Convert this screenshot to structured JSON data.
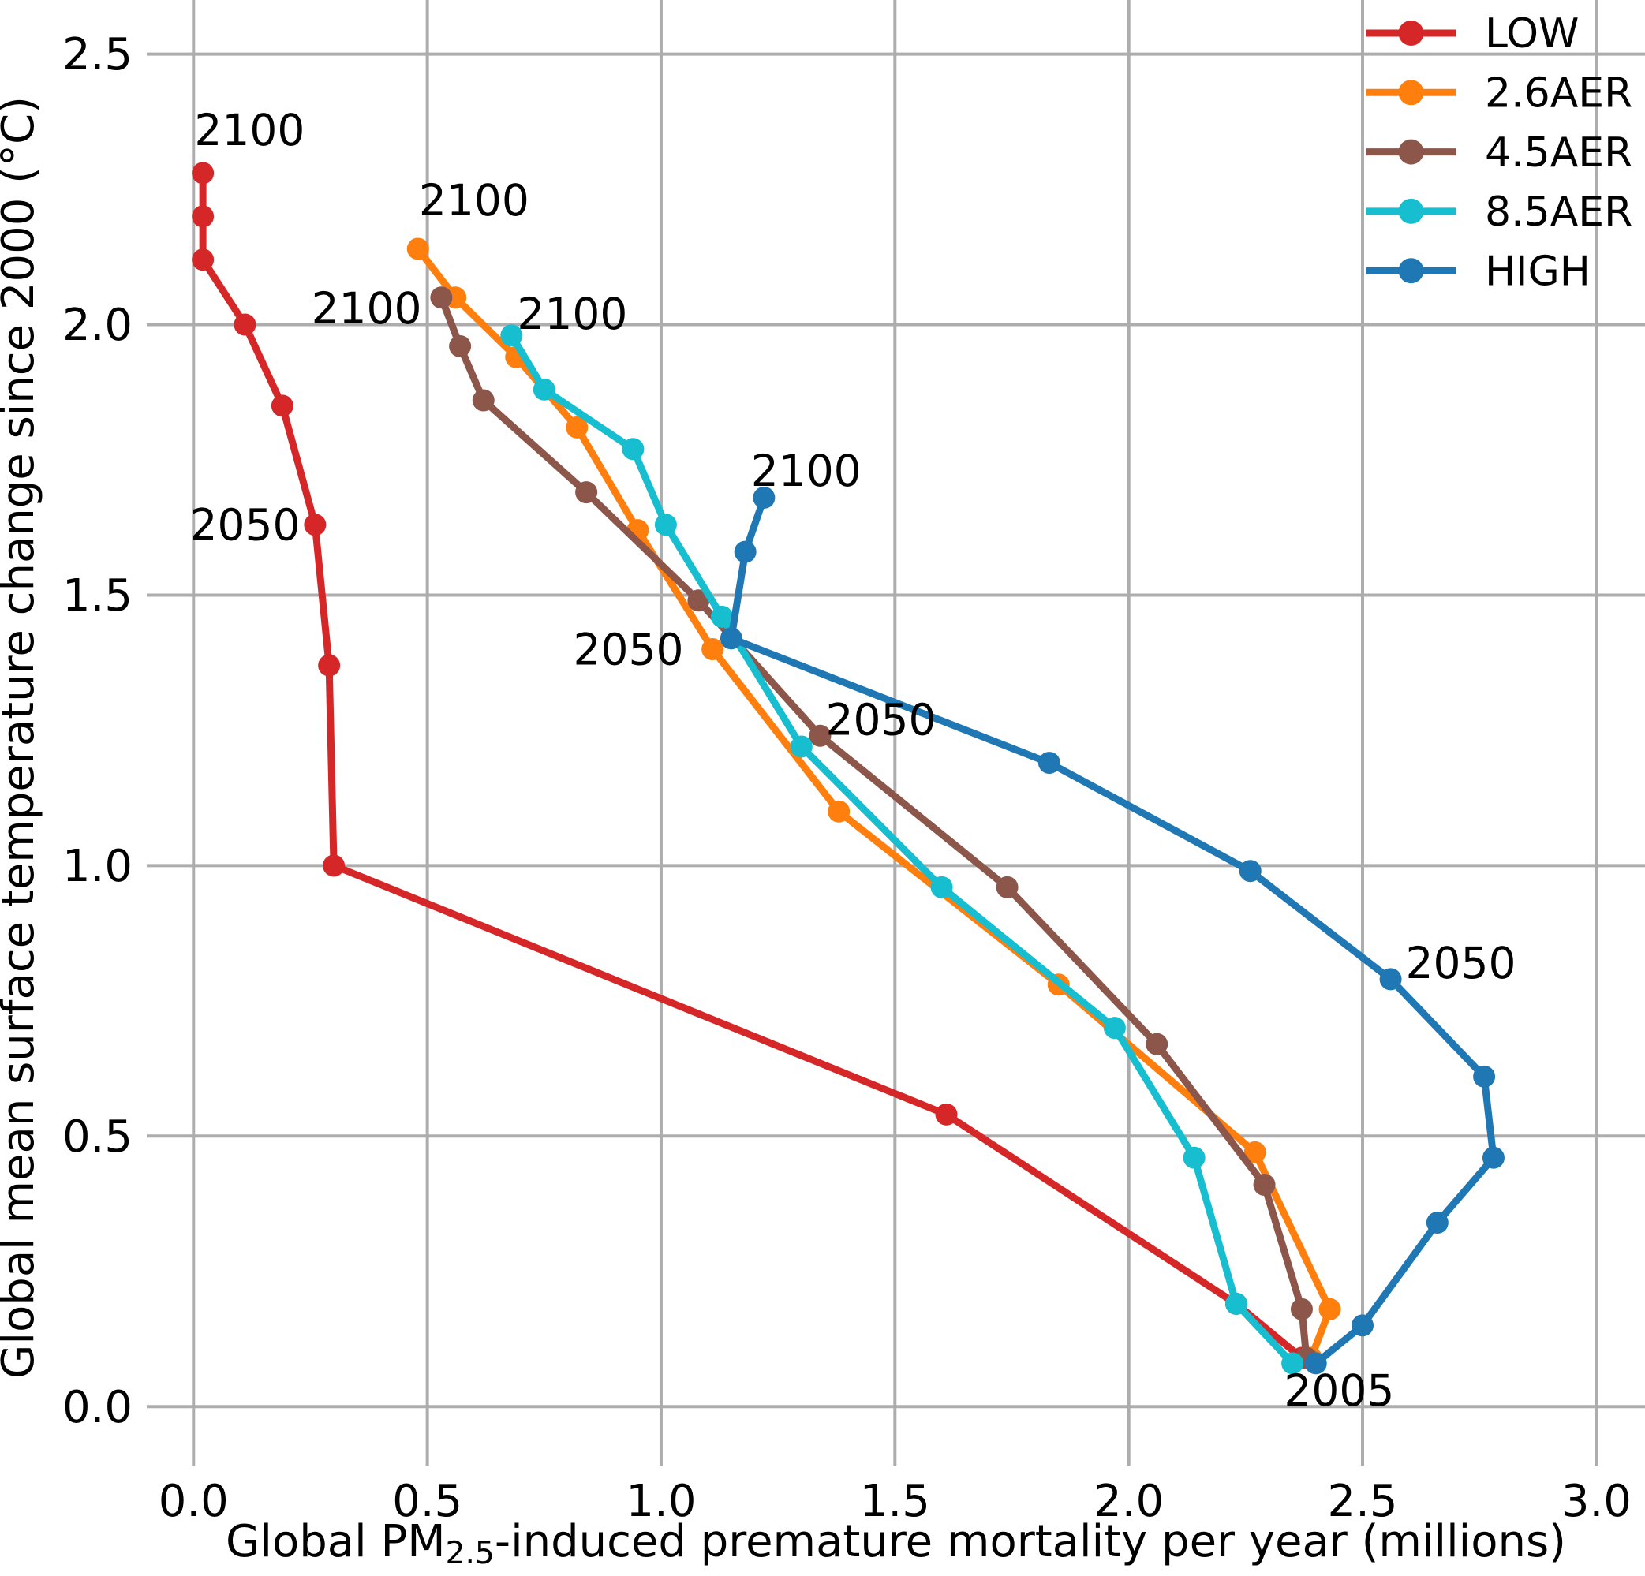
{
  "chart_data": {
    "type": "line",
    "title": "",
    "xlabel": {
      "prefix": "Global PM",
      "sub": "2.5",
      "suffix": "-induced premature mortality per year (millions)"
    },
    "ylabel": "Global mean surface temperature change since 2000 (°C)",
    "xlim": [
      -0.1,
      3.104
    ],
    "ylim": [
      -0.109,
      2.6
    ],
    "xticks": [
      0.0,
      0.5,
      1.0,
      1.5,
      2.0,
      2.5,
      3.0
    ],
    "xtick_labels": [
      "0.0",
      "0.5",
      "1.0",
      "1.5",
      "2.0",
      "2.5",
      "3.0"
    ],
    "yticks": [
      0.0,
      0.5,
      1.0,
      1.5,
      2.0,
      2.5
    ],
    "ytick_labels": [
      "0.0",
      "0.5",
      "1.0",
      "1.5",
      "2.0",
      "2.5"
    ],
    "grid": true,
    "grid_color": "#adadad",
    "legend_position": "upper right",
    "series": [
      {
        "name": "LOW",
        "color": "#d62728",
        "points": [
          [
            2.37,
            0.09
          ],
          [
            2.23,
            0.19
          ],
          [
            1.61,
            0.54
          ],
          [
            0.3,
            1.0
          ],
          [
            0.29,
            1.37
          ],
          [
            0.26,
            1.63
          ],
          [
            0.19,
            1.85
          ],
          [
            0.11,
            2.0
          ],
          [
            0.02,
            2.12
          ],
          [
            0.02,
            2.2
          ],
          [
            0.02,
            2.28
          ]
        ]
      },
      {
        "name": "2.6AER",
        "color": "#ff7f0e",
        "points": [
          [
            2.39,
            0.09
          ],
          [
            2.43,
            0.18
          ],
          [
            2.27,
            0.47
          ],
          [
            1.85,
            0.78
          ],
          [
            1.38,
            1.1
          ],
          [
            1.11,
            1.4
          ],
          [
            0.95,
            1.62
          ],
          [
            0.82,
            1.81
          ],
          [
            0.69,
            1.94
          ],
          [
            0.56,
            2.05
          ],
          [
            0.48,
            2.14
          ]
        ]
      },
      {
        "name": "4.5AER",
        "color": "#8c564b",
        "points": [
          [
            2.38,
            0.09
          ],
          [
            2.37,
            0.18
          ],
          [
            2.29,
            0.41
          ],
          [
            2.06,
            0.67
          ],
          [
            1.74,
            0.96
          ],
          [
            1.34,
            1.24
          ],
          [
            1.08,
            1.49
          ],
          [
            0.84,
            1.69
          ],
          [
            0.62,
            1.86
          ],
          [
            0.57,
            1.96
          ],
          [
            0.53,
            2.05
          ]
        ]
      },
      {
        "name": "8.5AER",
        "color": "#17becf",
        "points": [
          [
            2.35,
            0.08
          ],
          [
            2.23,
            0.19
          ],
          [
            2.14,
            0.46
          ],
          [
            1.97,
            0.7
          ],
          [
            1.6,
            0.96
          ],
          [
            1.3,
            1.22
          ],
          [
            1.13,
            1.46
          ],
          [
            1.01,
            1.63
          ],
          [
            0.94,
            1.77
          ],
          [
            0.75,
            1.88
          ],
          [
            0.68,
            1.98
          ]
        ]
      },
      {
        "name": "HIGH",
        "color": "#1f77b4",
        "points": [
          [
            2.4,
            0.08
          ],
          [
            2.5,
            0.15
          ],
          [
            2.66,
            0.34
          ],
          [
            2.78,
            0.46
          ],
          [
            2.76,
            0.61
          ],
          [
            2.56,
            0.79
          ],
          [
            2.26,
            0.99
          ],
          [
            1.83,
            1.19
          ],
          [
            1.15,
            1.42
          ],
          [
            1.18,
            1.58
          ],
          [
            1.22,
            1.68
          ]
        ]
      }
    ],
    "annotations": [
      {
        "text": "2100",
        "x": 0.12,
        "y": 2.36
      },
      {
        "text": "2100",
        "x": 0.6,
        "y": 2.23
      },
      {
        "text": "2100",
        "x": 0.37,
        "y": 2.03
      },
      {
        "text": "2100",
        "x": 0.81,
        "y": 2.02
      },
      {
        "text": "2100",
        "x": 1.31,
        "y": 1.73
      },
      {
        "text": "2050",
        "x": 0.11,
        "y": 1.63
      },
      {
        "text": "2050",
        "x": 0.93,
        "y": 1.4
      },
      {
        "text": "2050",
        "x": 1.47,
        "y": 1.27
      },
      {
        "text": "2050",
        "x": 2.71,
        "y": 0.82
      },
      {
        "text": "2005",
        "x": 2.45,
        "y": 0.03
      }
    ],
    "legend": {
      "entries": [
        {
          "label": "LOW",
          "color": "#d62728"
        },
        {
          "label": "2.6AER",
          "color": "#ff7f0e"
        },
        {
          "label": "4.5AER",
          "color": "#8c564b"
        },
        {
          "label": "8.5AER",
          "color": "#17becf"
        },
        {
          "label": "HIGH",
          "color": "#1f77b4"
        }
      ]
    }
  }
}
